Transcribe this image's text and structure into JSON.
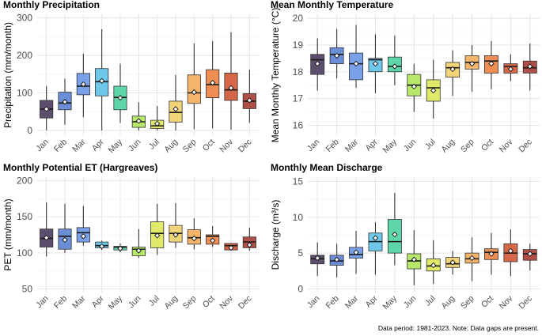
{
  "caption": "Data period: 1981-2023. Note: Data gaps are present.",
  "colors": [
    "#5c4f6e",
    "#6c8ed6",
    "#7aa0e8",
    "#6ec6e8",
    "#5ed6a8",
    "#b8e86a",
    "#e0ea68",
    "#f2d478",
    "#f4b46a",
    "#ee8e52",
    "#d66648",
    "#b04e48"
  ],
  "chart_data": [
    {
      "type": "box",
      "title": "Monthly Precipitation",
      "ylabel": "Precipitation (mm/month)",
      "xlabel": "",
      "ylim": [
        -15,
        310
      ],
      "yticks": [
        0,
        100,
        200,
        300
      ],
      "categories": [
        "Jan",
        "Feb",
        "Mar",
        "Apr",
        "May",
        "Jun",
        "Jul",
        "Aug",
        "Sep",
        "Oct",
        "Nov",
        "Dec"
      ],
      "boxes": [
        {
          "min": 0,
          "q1": 33,
          "median": 57,
          "q3": 80,
          "max": 118,
          "mean": 57
        },
        {
          "min": 15,
          "q1": 55,
          "median": 73,
          "q3": 102,
          "max": 138,
          "mean": 76
        },
        {
          "min": 35,
          "q1": 95,
          "median": 118,
          "q3": 152,
          "max": 205,
          "mean": 123
        },
        {
          "min": 0,
          "q1": 92,
          "median": 130,
          "q3": 165,
          "max": 270,
          "mean": 132
        },
        {
          "min": 20,
          "q1": 55,
          "median": 88,
          "q3": 118,
          "max": 178,
          "mean": 87
        },
        {
          "min": 0,
          "q1": 8,
          "median": 23,
          "q3": 38,
          "max": 75,
          "mean": 25
        },
        {
          "min": 0,
          "q1": 5,
          "median": 12,
          "q3": 27,
          "max": 65,
          "mean": 18
        },
        {
          "min": 0,
          "q1": 22,
          "median": 48,
          "q3": 78,
          "max": 148,
          "mean": 57
        },
        {
          "min": 3,
          "q1": 72,
          "median": 100,
          "q3": 148,
          "max": 232,
          "mean": 102
        },
        {
          "min": 5,
          "q1": 87,
          "median": 122,
          "q3": 162,
          "max": 238,
          "mean": 127
        },
        {
          "min": 2,
          "q1": 80,
          "median": 108,
          "q3": 153,
          "max": 262,
          "mean": 113
        },
        {
          "min": 20,
          "q1": 58,
          "median": 78,
          "q3": 98,
          "max": 162,
          "mean": 80
        }
      ]
    },
    {
      "type": "box",
      "title": "Mean Monthly Temperature",
      "ylabel": "Mean Monthly Temperature (°C)",
      "xlabel": "",
      "ylim": [
        15.6,
        20.15
      ],
      "yticks": [
        16,
        17,
        18,
        19,
        20
      ],
      "categories": [
        "Jan",
        "Feb",
        "Mar",
        "Apr",
        "May",
        "Jun",
        "Jul",
        "Aug",
        "Sep",
        "Oct",
        "Nov",
        "Dec"
      ],
      "boxes": [
        {
          "min": 17.3,
          "q1": 17.9,
          "median": 18.45,
          "q3": 18.65,
          "max": 19.25,
          "mean": 18.3
        },
        {
          "min": 17.75,
          "q1": 18.3,
          "median": 18.65,
          "q3": 18.9,
          "max": 19.6,
          "mean": 18.6
        },
        {
          "min": 17.4,
          "q1": 17.7,
          "median": 18.3,
          "q3": 18.7,
          "max": 19.75,
          "mean": 18.3
        },
        {
          "min": 17.2,
          "q1": 18.0,
          "median": 18.45,
          "q3": 18.5,
          "max": 19.4,
          "mean": 18.3
        },
        {
          "min": 17.5,
          "q1": 18.0,
          "median": 18.2,
          "q3": 18.55,
          "max": 19.35,
          "mean": 18.2
        },
        {
          "min": 16.5,
          "q1": 17.1,
          "median": 17.5,
          "q3": 17.9,
          "max": 18.3,
          "mean": 17.45
        },
        {
          "min": 16.25,
          "q1": 16.9,
          "median": 17.4,
          "q3": 17.7,
          "max": 18.45,
          "mean": 17.3
        },
        {
          "min": 17.1,
          "q1": 17.8,
          "median": 18.15,
          "q3": 18.35,
          "max": 18.8,
          "mean": 18.1
        },
        {
          "min": 17.25,
          "q1": 18.1,
          "median": 18.35,
          "q3": 18.6,
          "max": 19.0,
          "mean": 18.3
        },
        {
          "min": 17.35,
          "q1": 17.95,
          "median": 18.4,
          "q3": 18.6,
          "max": 19.15,
          "mean": 18.3
        },
        {
          "min": 17.65,
          "q1": 17.95,
          "median": 18.2,
          "q3": 18.3,
          "max": 18.65,
          "mean": 18.1
        },
        {
          "min": 17.3,
          "q1": 17.95,
          "median": 18.15,
          "q3": 18.4,
          "max": 19.05,
          "mean": 18.2
        }
      ]
    },
    {
      "type": "box",
      "title": "Monthly Potential ET (Hargreaves)",
      "ylabel": "PET (mm/month)",
      "xlabel": "",
      "ylim": [
        45,
        205
      ],
      "yticks": [
        50,
        100,
        150,
        200
      ],
      "categories": [
        "Jan",
        "Feb",
        "Mar",
        "Apr",
        "May",
        "Jun",
        "Jul",
        "Aug",
        "Sep",
        "Oct",
        "Nov",
        "Dec"
      ],
      "boxes": [
        {
          "min": 95,
          "q1": 108,
          "median": 120,
          "q3": 133,
          "max": 170,
          "mean": 121
        },
        {
          "min": 100,
          "q1": 105,
          "median": 123,
          "q3": 133,
          "max": 168,
          "mean": 118
        },
        {
          "min": 110,
          "q1": 115,
          "median": 128,
          "q3": 135,
          "max": 165,
          "mean": 123
        },
        {
          "min": 104,
          "q1": 107,
          "median": 110,
          "q3": 115,
          "max": 117,
          "mean": 109
        },
        {
          "min": 101,
          "q1": 104,
          "median": 108,
          "q3": 109,
          "max": 113,
          "mean": 106
        },
        {
          "min": 93,
          "q1": 96,
          "median": 105,
          "q3": 108,
          "max": 133,
          "mean": 103
        },
        {
          "min": 97,
          "q1": 107,
          "median": 127,
          "q3": 143,
          "max": 168,
          "mean": 124
        },
        {
          "min": 107,
          "q1": 115,
          "median": 127,
          "q3": 138,
          "max": 169,
          "mean": 125
        },
        {
          "min": 105,
          "q1": 112,
          "median": 121,
          "q3": 132,
          "max": 148,
          "mean": 120
        },
        {
          "min": 108,
          "q1": 112,
          "median": 123,
          "q3": 125,
          "max": 137,
          "mean": 117
        },
        {
          "min": 103,
          "q1": 104,
          "median": 110,
          "q3": 113,
          "max": 113,
          "mean": 107
        },
        {
          "min": 103,
          "q1": 107,
          "median": 115,
          "q3": 122,
          "max": 135,
          "mean": 111
        }
      ]
    },
    {
      "type": "box",
      "title": "Monthly Mean Discharge",
      "ylabel": "Discharge (m³/s)",
      "xlabel": "",
      "ylim": [
        -0.5,
        15.6
      ],
      "yticks": [
        0,
        5,
        10,
        15
      ],
      "categories": [
        "Jan",
        "Feb",
        "Mar",
        "Apr",
        "May",
        "Jun",
        "Jul",
        "Aug",
        "Sep",
        "Oct",
        "Nov",
        "Dec"
      ],
      "boxes": [
        {
          "min": 1.8,
          "q1": 3.5,
          "median": 4.2,
          "q3": 4.7,
          "max": 6.5,
          "mean": 4.3
        },
        {
          "min": 1.6,
          "q1": 3.3,
          "median": 3.9,
          "q3": 4.7,
          "max": 6.3,
          "mean": 4.1
        },
        {
          "min": 2.1,
          "q1": 4.3,
          "median": 4.8,
          "q3": 5.8,
          "max": 8.1,
          "mean": 5.1
        },
        {
          "min": 2.0,
          "q1": 5.3,
          "median": 6.6,
          "q3": 7.8,
          "max": 9.3,
          "mean": 7.1
        },
        {
          "min": 3.3,
          "q1": 5.0,
          "median": 6.6,
          "q3": 9.7,
          "max": 13.4,
          "mean": 7.6
        },
        {
          "min": 0.5,
          "q1": 2.8,
          "median": 3.9,
          "q3": 4.9,
          "max": 8.2,
          "mean": 4.1
        },
        {
          "min": 0.7,
          "q1": 2.5,
          "median": 3.2,
          "q3": 4.2,
          "max": 6.8,
          "mean": 3.3
        },
        {
          "min": 2.0,
          "q1": 3.0,
          "median": 3.5,
          "q3": 4.4,
          "max": 5.3,
          "mean": 3.7
        },
        {
          "min": 1.1,
          "q1": 3.6,
          "median": 4.2,
          "q3": 5.0,
          "max": 7.2,
          "mean": 4.3
        },
        {
          "min": 2.0,
          "q1": 4.1,
          "median": 5.1,
          "q3": 5.6,
          "max": 7.8,
          "mean": 4.9
        },
        {
          "min": 1.8,
          "q1": 3.8,
          "median": 5.0,
          "q3": 6.3,
          "max": 8.3,
          "mean": 5.3
        },
        {
          "min": 2.6,
          "q1": 4.0,
          "median": 4.9,
          "q3": 5.5,
          "max": 6.3,
          "mean": 4.9
        }
      ]
    }
  ]
}
